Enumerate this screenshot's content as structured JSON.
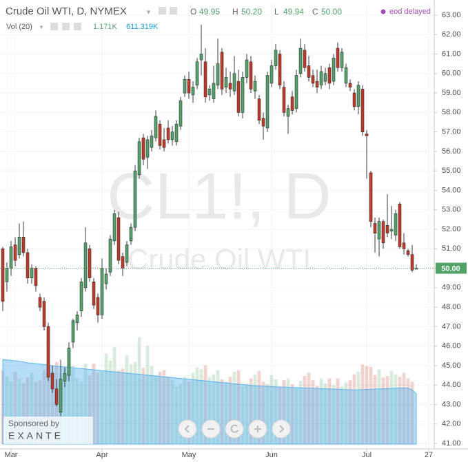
{
  "chart_data": {
    "type": "candlestick",
    "title": "Crude Oil WTI, D, NYMEX",
    "watermark": [
      "CL1!, D",
      "Crude Oil WTI"
    ],
    "ohlc_legend": [
      {
        "key": "O",
        "value": 49.95,
        "label": "49.95"
      },
      {
        "key": "H",
        "value": 50.2,
        "label": "50.20"
      },
      {
        "key": "L",
        "value": 49.94,
        "label": "49.94"
      },
      {
        "key": "C",
        "value": 50,
        "label": "50.00"
      }
    ],
    "status": "eod delayed",
    "volume_label": "Vol (20)",
    "volume_legend": [
      {
        "value": 1.171,
        "label": "1.171K"
      },
      {
        "value": 611.319,
        "label": "611.319K"
      }
    ],
    "sponsor": [
      "Sponsored by",
      "EXANTE"
    ],
    "last_price": {
      "value": 50,
      "label": "50.00"
    },
    "open": [
      51.0,
      49.3,
      50.0,
      51.2,
      50.7,
      51.6,
      50.8,
      49.5,
      50.0,
      48.5,
      48.3,
      47.0,
      44.6,
      43.8,
      42.6,
      44.2,
      44.5,
      46.2,
      47.2,
      47.8,
      49.0,
      51.0,
      49.3,
      48.5,
      47.6,
      49.2,
      49.8,
      51.4,
      52.6,
      50.6,
      50.3,
      51.4,
      52.1,
      54.8,
      56.7,
      55.7,
      56.2,
      56.7,
      57.4,
      56.6,
      57.2,
      56.6,
      56.5,
      57.3,
      59.0,
      59.7,
      58.9,
      59.4,
      60.7,
      60.6,
      58.9,
      58.7,
      59.4,
      61.1,
      59.3,
      59.5,
      59.1,
      59.6,
      58.0,
      59.8,
      60.6,
      59.1,
      58.7,
      57.7,
      57.2,
      59.5,
      60.4,
      61.0,
      59.3,
      57.8,
      58.8,
      58.2,
      60.0,
      61.2,
      60.4,
      59.9,
      59.6,
      59.4,
      59.6,
      60.3,
      59.6,
      61.3,
      60.3,
      59.5,
      59.5,
      59.0,
      58.3,
      59.2,
      56.9,
      54.9,
      52.3,
      51.5,
      52.4,
      52.2,
      51.9,
      51.7,
      53.3,
      51.3,
      50.9,
      50.7,
      49.95
    ],
    "high": [
      51.1,
      50.3,
      51.4,
      51.6,
      52.3,
      52.4,
      51.0,
      50.2,
      50.1,
      48.7,
      48.5,
      47.2,
      45.0,
      44.3,
      45.3,
      44.9,
      46.2,
      47.4,
      47.8,
      49.5,
      52.1,
      51.2,
      49.5,
      48.7,
      50.5,
      50.0,
      51.7,
      53.0,
      52.9,
      50.8,
      51.4,
      52.3,
      55.3,
      56.7,
      56.9,
      56.8,
      57.1,
      58.1,
      57.6,
      57.2,
      57.6,
      57.3,
      57.6,
      58.8,
      59.9,
      60.1,
      59.6,
      60.8,
      62.5,
      61.3,
      59.4,
      60.4,
      61.8,
      61.3,
      60.3,
      60.1,
      60.9,
      60.2,
      60.1,
      61.0,
      60.9,
      59.9,
      58.9,
      58.0,
      60.1,
      60.7,
      61.5,
      61.2,
      59.6,
      58.4,
      59.1,
      60.2,
      61.8,
      61.5,
      60.9,
      60.2,
      60.2,
      60.4,
      60.3,
      60.5,
      61.0,
      61.6,
      61.3,
      60.5,
      59.7,
      59.2,
      59.6,
      59.4,
      57.1,
      55.0,
      52.6,
      52.6,
      52.5,
      53.8,
      53.2,
      53.0,
      53.4,
      51.8,
      51.0,
      51.2,
      50.2
    ],
    "low": [
      47.8,
      48.8,
      49.6,
      50.1,
      50.5,
      50.6,
      49.2,
      49.2,
      48.8,
      47.8,
      46.8,
      44.2,
      43.6,
      42.9,
      42.4,
      43.9,
      44.2,
      45.9,
      46.8,
      47.5,
      48.8,
      49.3,
      47.9,
      47.2,
      47.4,
      48.9,
      49.6,
      51.2,
      50.2,
      49.6,
      50.1,
      51.2,
      51.9,
      54.6,
      55.3,
      55.1,
      56.0,
      56.5,
      56.1,
      56.0,
      56.4,
      56.3,
      56.3,
      57.1,
      58.8,
      58.7,
      58.5,
      59.2,
      59.9,
      58.5,
      58.6,
      58.5,
      59.2,
      58.9,
      59.0,
      58.8,
      58.9,
      57.8,
      57.7,
      59.5,
      59.0,
      58.7,
      57.4,
      56.6,
      57.0,
      59.3,
      60.2,
      59.2,
      57.8,
      56.9,
      57.9,
      58.0,
      59.8,
      60.1,
      59.6,
      59.3,
      59.0,
      59.2,
      59.4,
      59.2,
      59.4,
      60.1,
      60.1,
      59.3,
      59.1,
      58.1,
      57.9,
      56.8,
      54.6,
      52.1,
      50.8,
      50.6,
      51.0,
      51.6,
      51.5,
      51.4,
      51.0,
      50.7,
      50.6,
      49.8,
      49.94
    ],
    "close": [
      48.3,
      50.0,
      51.1,
      50.4,
      51.6,
      50.8,
      49.5,
      50.0,
      49.1,
      48.0,
      47.0,
      44.4,
      43.8,
      43.0,
      44.3,
      44.6,
      45.9,
      47.3,
      47.6,
      49.3,
      51.3,
      49.5,
      48.1,
      47.6,
      50.0,
      49.7,
      51.5,
      52.8,
      50.4,
      50.0,
      51.2,
      52.1,
      55.0,
      56.5,
      55.6,
      56.6,
      56.8,
      57.8,
      56.3,
      56.2,
      56.6,
      57.0,
      57.4,
      58.6,
      59.7,
      59.0,
      59.3,
      60.6,
      61.0,
      58.8,
      59.2,
      59.5,
      60.5,
      59.2,
      59.8,
      59.2,
      60.0,
      58.0,
      59.8,
      60.7,
      59.2,
      59.6,
      57.6,
      57.3,
      59.9,
      60.4,
      61.2,
      59.4,
      58.0,
      58.2,
      58.1,
      59.9,
      61.3,
      60.3,
      59.8,
      59.5,
      59.3,
      60.1,
      60.0,
      59.5,
      60.8,
      60.3,
      61.1,
      60.3,
      59.3,
      58.3,
      59.4,
      57.0,
      56.8,
      52.4,
      51.8,
      52.4,
      51.3,
      51.8,
      52.0,
      52.8,
      51.1,
      51.0,
      50.7,
      49.9,
      50.0
    ],
    "volume": [
      900,
      820,
      760,
      880,
      790,
      740,
      810,
      870,
      760,
      780,
      900,
      940,
      880,
      1000,
      860,
      930,
      1040,
      950,
      800,
      760,
      980,
      840,
      980,
      870,
      880,
      1100,
      1020,
      1180,
      900,
      920,
      1080,
      970,
      1000,
      1300,
      930,
      1200,
      950,
      840,
      880,
      900,
      820,
      780,
      700,
      730,
      820,
      760,
      870,
      930,
      910,
      960,
      820,
      850,
      900,
      790,
      760,
      820,
      880,
      900,
      700,
      740,
      800,
      850,
      890,
      760,
      730,
      840,
      790,
      700,
      780,
      800,
      730,
      680,
      770,
      830,
      870,
      780,
      710,
      800,
      740,
      800,
      720,
      800,
      700,
      750,
      780,
      850,
      880,
      970,
      950,
      940,
      840,
      910,
      810,
      830,
      890,
      850,
      820,
      870,
      800,
      760,
      1.171
    ],
    "volume_ma": [
      1030,
      1025,
      1020,
      1015,
      1010,
      1000,
      990,
      985,
      980,
      975,
      970,
      960,
      955,
      950,
      945,
      940,
      935,
      930,
      925,
      920,
      915,
      910,
      905,
      900,
      895,
      890,
      885,
      880,
      875,
      870,
      865,
      860,
      855,
      850,
      845,
      840,
      835,
      830,
      825,
      820,
      815,
      810,
      805,
      800,
      795,
      790,
      785,
      780,
      775,
      770,
      765,
      760,
      755,
      750,
      745,
      740,
      735,
      730,
      725,
      720,
      715,
      712,
      709,
      706,
      703,
      700,
      698,
      696,
      694,
      692,
      690,
      688,
      686,
      684,
      682,
      680,
      678,
      676,
      674,
      672,
      670,
      668,
      666,
      664,
      662,
      660,
      662,
      664,
      666,
      668,
      670,
      672,
      674,
      676,
      678,
      680,
      682,
      684,
      680,
      660,
      611
    ],
    "colors": {
      "up": "#53a26a",
      "down": "#c0392b",
      "volume_ma": "#5cb4ee",
      "status": "#a24bb5",
      "volume_ma_text": "#1a9be0"
    },
    "xlim": [
      -0.67,
      104.33
    ],
    "xticks": [
      {
        "value": 2,
        "label": "Mar"
      },
      {
        "value": 24,
        "label": "Apr"
      },
      {
        "value": 45,
        "label": "May"
      },
      {
        "value": 65,
        "label": "Jun"
      },
      {
        "value": 88,
        "label": "Jul"
      },
      {
        "value": 103,
        "label": "27"
      }
    ],
    "ylim": [
      40.7,
      63.6
    ],
    "yticks": [
      {
        "value": 41,
        "label": "41.00"
      },
      {
        "value": 42,
        "label": "42.00"
      },
      {
        "value": 43,
        "label": "43.00"
      },
      {
        "value": 44,
        "label": "44.00"
      },
      {
        "value": 45,
        "label": "45.00"
      },
      {
        "value": 46,
        "label": "46.00"
      },
      {
        "value": 47,
        "label": "47.00"
      },
      {
        "value": 48,
        "label": "48.00"
      },
      {
        "value": 49,
        "label": "49.00"
      },
      {
        "value": 50,
        "label": "50.00"
      },
      {
        "value": 51,
        "label": "51.00"
      },
      {
        "value": 52,
        "label": "52.00"
      },
      {
        "value": 53,
        "label": "53.00"
      },
      {
        "value": 54,
        "label": "54.00"
      },
      {
        "value": 55,
        "label": "55.00"
      },
      {
        "value": 56,
        "label": "56.00"
      },
      {
        "value": 57,
        "label": "57.00"
      },
      {
        "value": 58,
        "label": "58.00"
      },
      {
        "value": 59,
        "label": "59.00"
      },
      {
        "value": 60,
        "label": "60.00"
      },
      {
        "value": 61,
        "label": "61.00"
      },
      {
        "value": 62,
        "label": "62.00"
      },
      {
        "value": 63,
        "label": "63.00"
      }
    ],
    "grid": true
  }
}
